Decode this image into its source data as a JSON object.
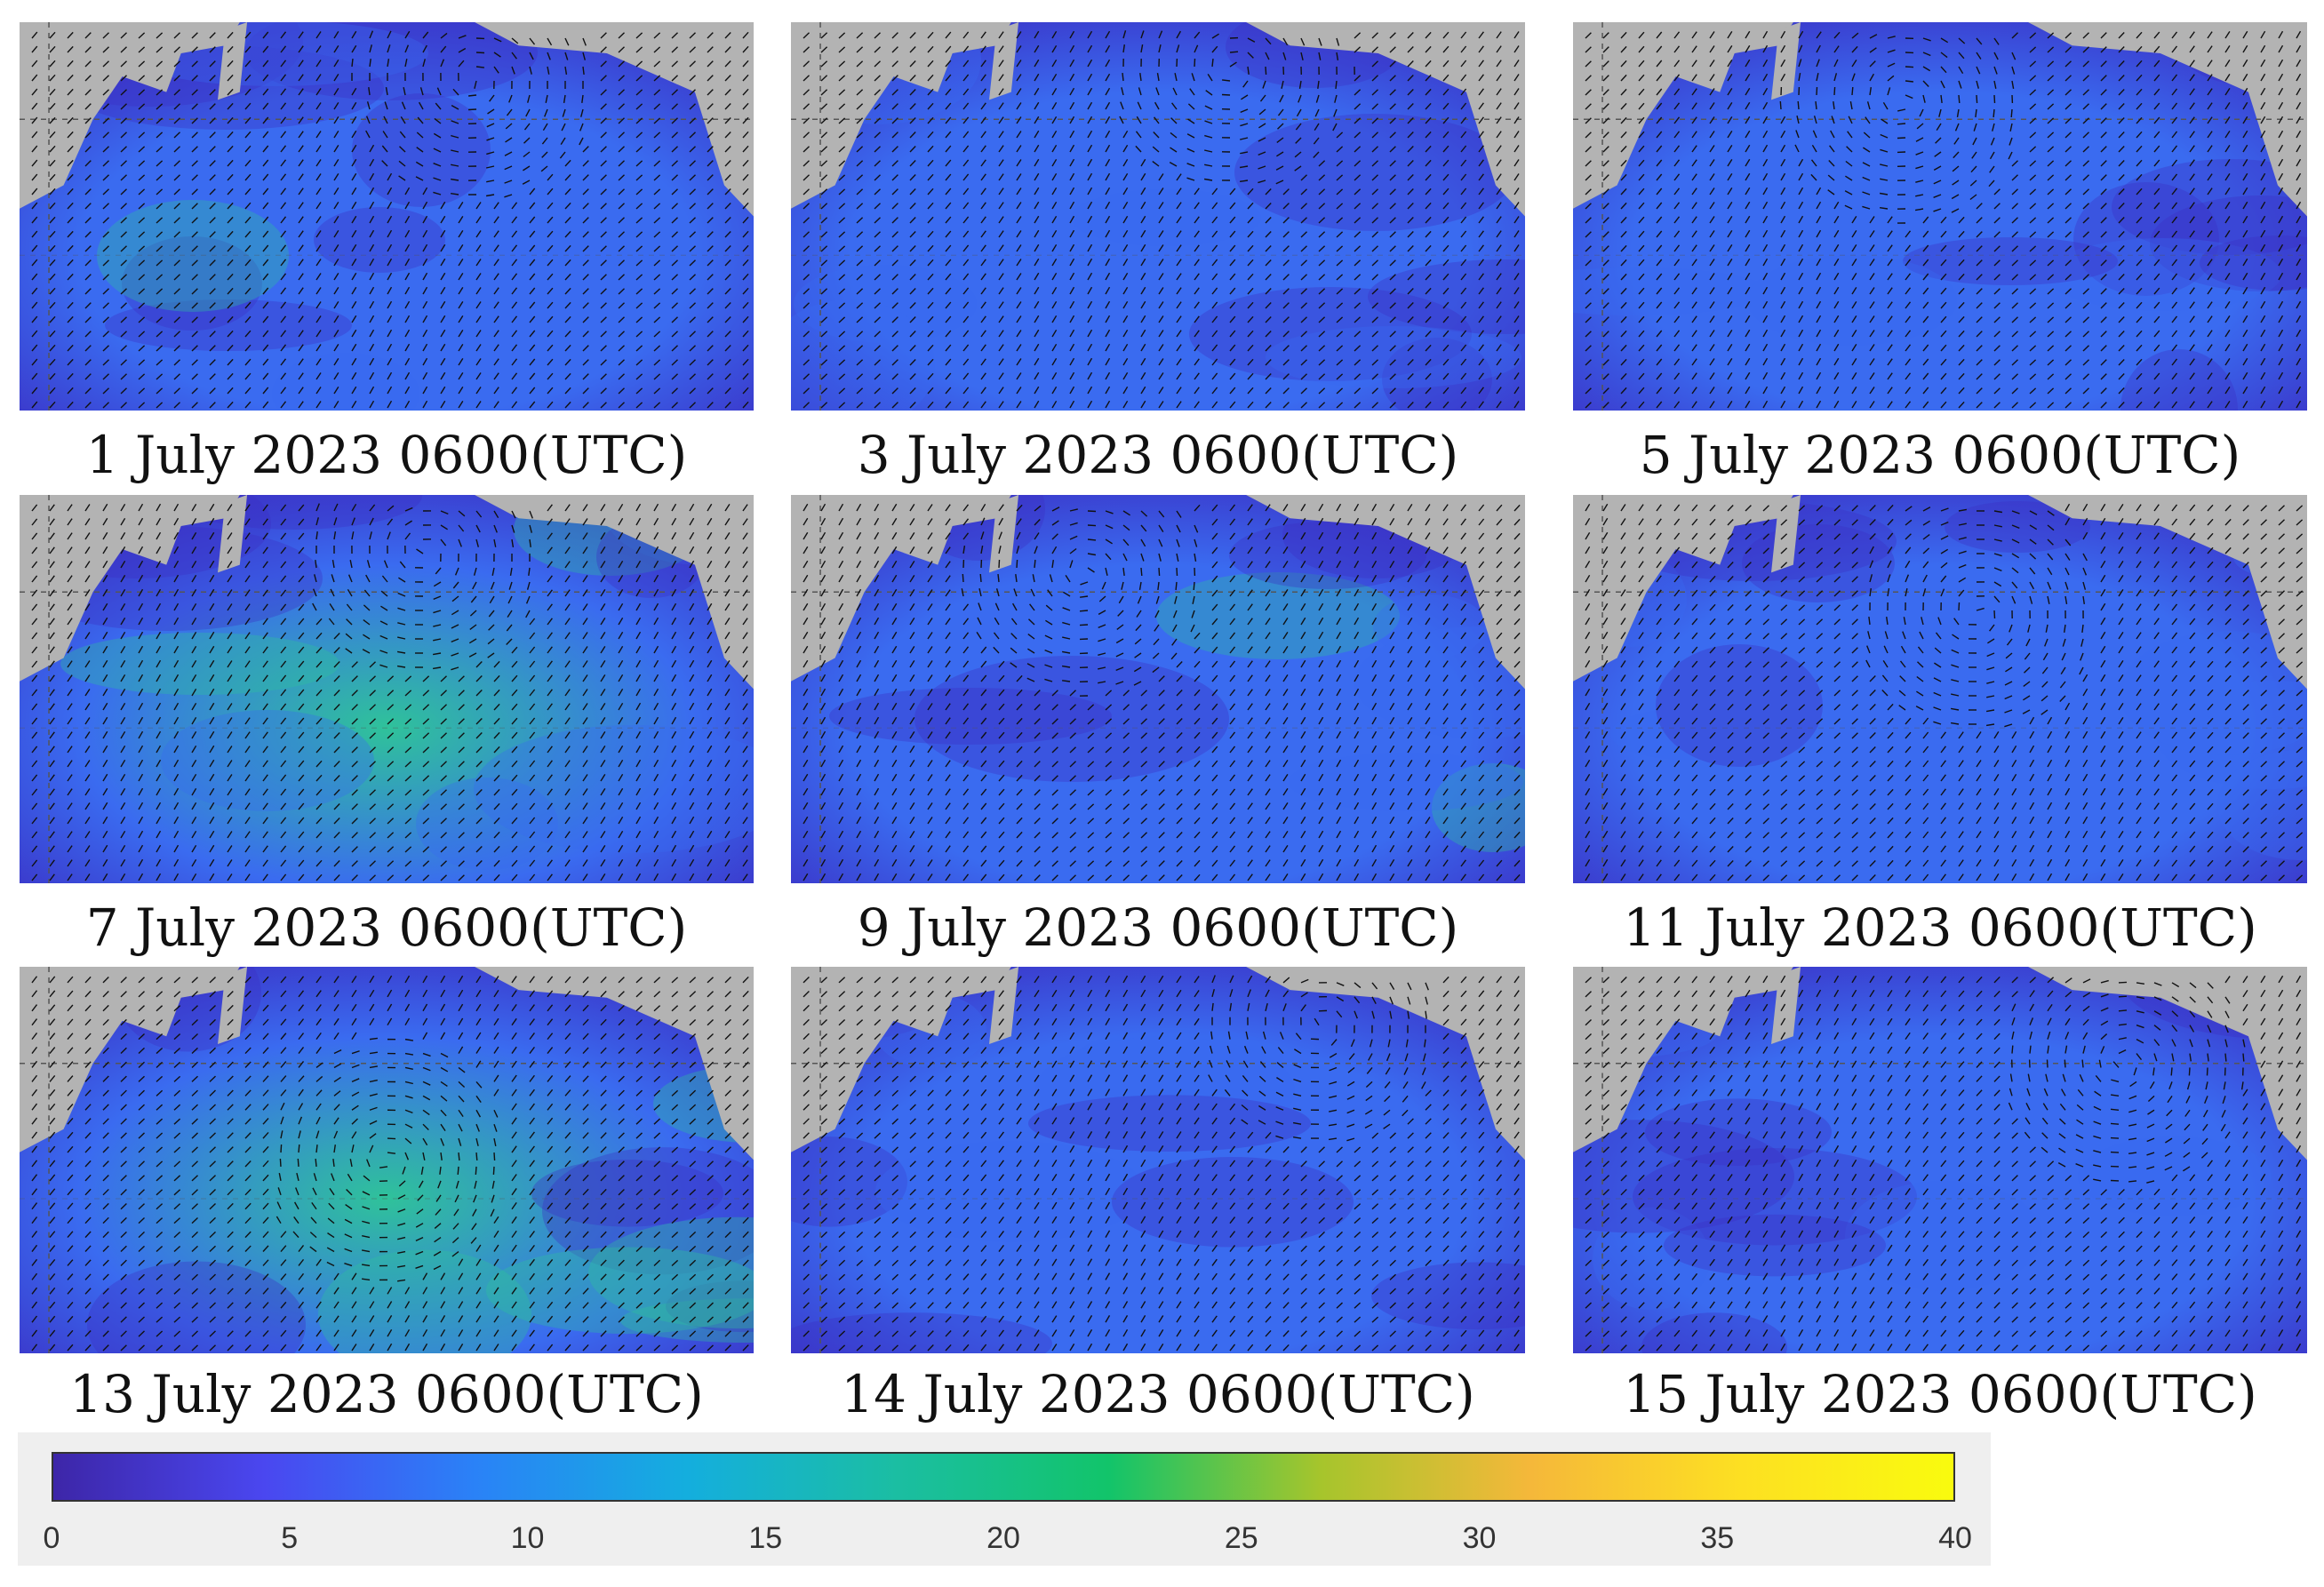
{
  "panels": [
    {
      "caption": "1 July 2023 0600(UTC)",
      "intensity": 0.35,
      "vortex": [
        0.62,
        0.15
      ]
    },
    {
      "caption": "3 July 2023 0600(UTC)",
      "intensity": 0.2,
      "vortex": [
        0.6,
        0.12
      ]
    },
    {
      "caption": "5 July 2023 0600(UTC)",
      "intensity": 0.15,
      "vortex": [
        0.45,
        0.2
      ]
    },
    {
      "caption": "7 July 2023 0600(UTC)",
      "intensity": 0.55,
      "vortex": [
        0.55,
        0.15
      ]
    },
    {
      "caption": "9 July 2023 0600(UTC)",
      "intensity": 0.1,
      "vortex": [
        0.4,
        0.2
      ]
    },
    {
      "caption": "11 July 2023 0600(UTC)",
      "intensity": 0.05,
      "vortex": [
        0.55,
        0.3
      ]
    },
    {
      "caption": "13 July 2023 0600(UTC)",
      "intensity": 0.6,
      "vortex": [
        0.5,
        0.5
      ]
    },
    {
      "caption": "14 July 2023 0600(UTC)",
      "intensity": 0.15,
      "vortex": [
        0.72,
        0.15
      ]
    },
    {
      "caption": "15 July 2023 0600(UTC)",
      "intensity": 0.3,
      "vortex": [
        0.75,
        0.25
      ]
    }
  ],
  "colorbar": {
    "min": 0,
    "max": 40,
    "ticks": [
      "0",
      "5",
      "10",
      "15",
      "20",
      "25",
      "30",
      "35",
      "40"
    ],
    "colors": [
      "#3d26a8",
      "#4a47f0",
      "#2a82f7",
      "#14aede",
      "#1bbea2",
      "#12c46a",
      "#a6c52c",
      "#f5b83a",
      "#fde022",
      "#f9fb0e"
    ]
  },
  "map_colors": {
    "land": "#b3b3b3",
    "ocean_low": "#3b2fc4",
    "ocean_mid": "#3a6bf0",
    "ocean_high": "#2fc29a",
    "vector": "#111111"
  }
}
